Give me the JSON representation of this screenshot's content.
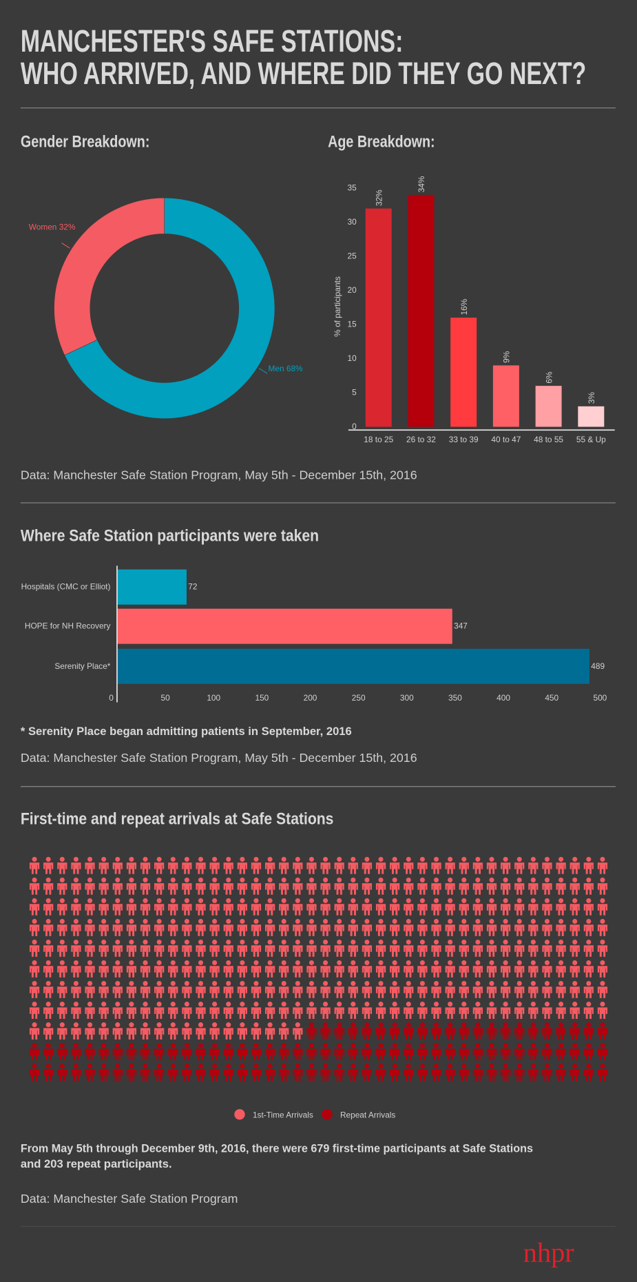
{
  "header": {
    "title_lines": [
      "MANCHESTER'S SAFE STATIONS:",
      "WHO ARRIVED, AND WHERE DID THEY GO NEXT?"
    ]
  },
  "chart_data": [
    {
      "type": "pie",
      "title": "Gender Breakdown:",
      "categories": [
        "Women",
        "Men"
      ],
      "values": [
        32,
        68
      ],
      "value_labels": [
        "Women 32%",
        "Men 68%"
      ],
      "colors": [
        "#f45b62",
        "#00a0be"
      ]
    },
    {
      "type": "bar",
      "title": "Age Breakdown:",
      "ylabel": "% of participants",
      "categories": [
        "18 to 25",
        "26 to 32",
        "33 to 39",
        "40 to 47",
        "48 to 55",
        "55 & Up"
      ],
      "values": [
        32,
        34,
        16,
        9,
        6,
        3
      ],
      "value_labels": [
        "32%",
        "34%",
        "16%",
        "9%",
        "6%",
        "3%"
      ],
      "colors": [
        "#d9262f",
        "#b5000c",
        "#ff3b3f",
        "#ff6066",
        "#ffa0a5",
        "#ffcfd2"
      ],
      "ylim": [
        0,
        35
      ],
      "yticks": [
        0,
        5,
        10,
        15,
        20,
        25,
        30,
        35
      ]
    },
    {
      "type": "hbar",
      "title": "Where Safe Station participants were taken",
      "categories": [
        "Hospitals (CMC or Elliot)",
        "HOPE for NH Recovery",
        "Serenity Place*"
      ],
      "values": [
        72,
        347,
        489
      ],
      "colors": [
        "#00a0be",
        "#ff6066",
        "#006d94"
      ],
      "xlim": [
        0,
        500
      ],
      "xticks": [
        0,
        50,
        100,
        150,
        200,
        250,
        300,
        350,
        400,
        450,
        500
      ]
    },
    {
      "type": "waffle",
      "title": "First-time and repeat arrivals at Safe Stations",
      "series": [
        {
          "name": "1st-Time Arrivals",
          "color": "#f45b62",
          "values": [
            679
          ]
        },
        {
          "name": "Repeat Arrivals",
          "color": "#b3000c",
          "values": [
            203
          ]
        }
      ]
    }
  ],
  "notes": {
    "source_1": "Data: Manchester Safe Station Program, May 5th - December 15th, 2016",
    "footnote": "* Serenity Place began admitting patients in September, 2016",
    "source_2": "Data: Manchester Safe Station Program, May 5th - December 15th, 2016",
    "summary_lines": [
      "From May 5th through December 9th, 2016, there were 679 first-time participants at Safe Stations",
      "and 203 repeat participants."
    ],
    "source_3": "Data: Manchester Safe Station Program",
    "logo": "nhpr"
  }
}
